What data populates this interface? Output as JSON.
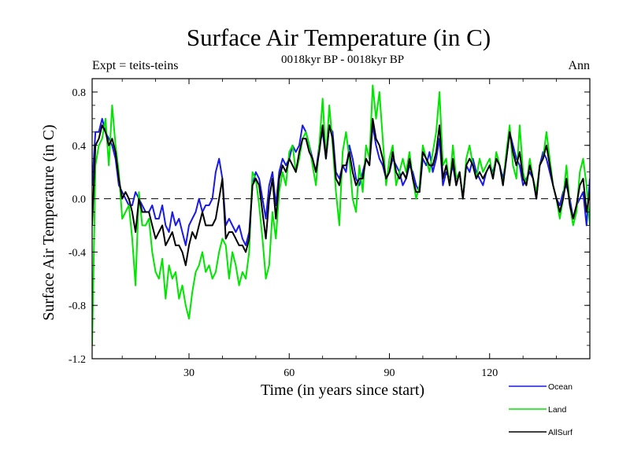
{
  "chart_data": {
    "type": "line",
    "title": "Surface Air Temperature (in C)",
    "subtitle": "0018kyr BP - 0018kyr BP",
    "left_annotation": "Expt = teits-teins",
    "right_annotation": "Ann",
    "xlabel": "Time (in years since start)",
    "ylabel": "Surface Air Temperature (in C)",
    "xlim": [
      1,
      150
    ],
    "ylim": [
      -1.2,
      0.9
    ],
    "xticks": [
      30,
      60,
      90,
      120
    ],
    "xtick_labels": [
      "30",
      "60",
      "90",
      "120"
    ],
    "yticks": [
      -1.2,
      -0.8,
      -0.4,
      0.0,
      0.4,
      0.8
    ],
    "ytick_labels": [
      "-1.2",
      "-0.8",
      "-0.4",
      "0.0",
      "0.4",
      "0.8"
    ],
    "reference_line": 0.0,
    "legend_position": "bottom-right",
    "x": [
      1,
      2,
      3,
      4,
      5,
      6,
      7,
      8,
      9,
      10,
      11,
      12,
      13,
      14,
      15,
      16,
      17,
      18,
      19,
      20,
      21,
      22,
      23,
      24,
      25,
      26,
      27,
      28,
      29,
      30,
      31,
      32,
      33,
      34,
      35,
      36,
      37,
      38,
      39,
      40,
      41,
      42,
      43,
      44,
      45,
      46,
      47,
      48,
      49,
      50,
      51,
      52,
      53,
      54,
      55,
      56,
      57,
      58,
      59,
      60,
      61,
      62,
      63,
      64,
      65,
      66,
      67,
      68,
      69,
      70,
      71,
      72,
      73,
      74,
      75,
      76,
      77,
      78,
      79,
      80,
      81,
      82,
      83,
      84,
      85,
      86,
      87,
      88,
      89,
      90,
      91,
      92,
      93,
      94,
      95,
      96,
      97,
      98,
      99,
      100,
      101,
      102,
      103,
      104,
      105,
      106,
      107,
      108,
      109,
      110,
      111,
      112,
      113,
      114,
      115,
      116,
      117,
      118,
      119,
      120,
      121,
      122,
      123,
      124,
      125,
      126,
      127,
      128,
      129,
      130,
      131,
      132,
      133,
      134,
      135,
      136,
      137,
      138,
      139,
      140,
      141,
      142,
      143,
      144,
      145,
      146,
      147,
      148,
      149,
      150
    ],
    "series": [
      {
        "name": "Ocean",
        "color": "#1a1ae6",
        "values": [
          0.1,
          0.5,
          0.5,
          0.6,
          0.5,
          0.45,
          0.4,
          0.3,
          0.1,
          0.05,
          0.0,
          -0.05,
          -0.05,
          0.05,
          0.0,
          -0.05,
          -0.1,
          -0.1,
          -0.05,
          -0.15,
          -0.15,
          -0.05,
          -0.2,
          -0.25,
          -0.1,
          -0.2,
          -0.15,
          -0.25,
          -0.35,
          -0.2,
          -0.15,
          -0.1,
          0.0,
          -0.1,
          -0.05,
          -0.05,
          0.0,
          0.2,
          0.3,
          0.15,
          -0.2,
          -0.15,
          -0.2,
          -0.25,
          -0.2,
          -0.3,
          -0.35,
          -0.25,
          0.1,
          0.2,
          0.15,
          0.0,
          -0.15,
          0.1,
          0.2,
          -0.05,
          0.2,
          0.3,
          0.25,
          0.3,
          0.4,
          0.35,
          0.4,
          0.55,
          0.5,
          0.4,
          0.3,
          0.2,
          0.4,
          0.5,
          0.3,
          0.55,
          0.5,
          0.2,
          0.15,
          0.25,
          0.2,
          0.4,
          0.3,
          0.15,
          0.1,
          0.2,
          0.3,
          0.25,
          0.55,
          0.4,
          0.3,
          0.25,
          0.15,
          0.2,
          0.3,
          0.25,
          0.2,
          0.1,
          0.15,
          0.25,
          0.2,
          0.1,
          0.05,
          0.3,
          0.25,
          0.35,
          0.2,
          0.3,
          0.45,
          0.1,
          0.2,
          0.15,
          0.25,
          0.1,
          0.2,
          0.0,
          0.25,
          0.2,
          0.3,
          0.2,
          0.15,
          0.1,
          0.2,
          0.25,
          0.2,
          0.3,
          0.25,
          0.15,
          0.3,
          0.5,
          0.4,
          0.3,
          0.25,
          0.1,
          0.15,
          0.2,
          0.15,
          0.0,
          0.25,
          0.35,
          0.3,
          0.2,
          0.1,
          0.0,
          -0.05,
          0.05,
          0.1,
          0.0,
          -0.15,
          -0.05,
          0.0,
          0.05,
          -0.2,
          0.15
        ]
      },
      {
        "name": "Land",
        "color": "#00e600",
        "values": [
          -1.1,
          0.25,
          0.4,
          0.45,
          0.6,
          0.25,
          0.7,
          0.4,
          0.2,
          -0.15,
          -0.1,
          -0.05,
          -0.3,
          -0.65,
          0.05,
          -0.2,
          -0.2,
          -0.15,
          -0.4,
          -0.55,
          -0.6,
          -0.45,
          -0.75,
          -0.5,
          -0.6,
          -0.55,
          -0.75,
          -0.65,
          -0.8,
          -0.9,
          -0.7,
          -0.55,
          -0.5,
          -0.4,
          -0.55,
          -0.5,
          -0.6,
          -0.55,
          -0.4,
          -0.3,
          -0.35,
          -0.6,
          -0.4,
          -0.5,
          -0.65,
          -0.55,
          -0.6,
          -0.4,
          0.2,
          0.15,
          -0.05,
          -0.3,
          -0.6,
          -0.5,
          -0.1,
          -0.3,
          0.05,
          0.2,
          0.1,
          0.35,
          0.4,
          0.2,
          0.3,
          0.45,
          0.5,
          0.4,
          0.25,
          0.1,
          0.4,
          0.75,
          0.3,
          0.7,
          0.4,
          0.05,
          -0.2,
          0.35,
          0.5,
          0.3,
          0.0,
          -0.1,
          0.25,
          0.05,
          0.4,
          0.3,
          0.85,
          0.6,
          0.8,
          0.45,
          0.1,
          0.3,
          0.4,
          0.1,
          0.2,
          0.3,
          0.2,
          0.35,
          0.15,
          0.0,
          0.1,
          0.4,
          0.3,
          0.2,
          0.35,
          0.5,
          0.8,
          0.25,
          0.3,
          0.1,
          0.4,
          0.15,
          0.2,
          0.0,
          0.3,
          0.4,
          0.25,
          0.15,
          0.3,
          0.2,
          0.25,
          0.3,
          0.15,
          0.35,
          0.25,
          0.1,
          0.35,
          0.55,
          0.25,
          0.15,
          0.55,
          0.2,
          0.1,
          0.3,
          0.15,
          0.05,
          0.25,
          0.3,
          0.5,
          0.3,
          0.1,
          0.0,
          -0.15,
          0.0,
          0.25,
          -0.05,
          -0.2,
          -0.1,
          0.2,
          0.3,
          0.1,
          -0.2
        ]
      },
      {
        "name": "AllSurf",
        "color": "#000000",
        "values": [
          -0.2,
          0.4,
          0.45,
          0.55,
          0.5,
          0.4,
          0.45,
          0.35,
          0.15,
          0.0,
          0.05,
          0.0,
          -0.1,
          -0.25,
          0.0,
          -0.1,
          -0.1,
          -0.1,
          -0.2,
          -0.3,
          -0.25,
          -0.2,
          -0.35,
          -0.3,
          -0.25,
          -0.35,
          -0.35,
          -0.4,
          -0.5,
          -0.35,
          -0.25,
          -0.3,
          -0.2,
          -0.1,
          -0.2,
          -0.2,
          -0.2,
          -0.15,
          0.0,
          0.15,
          -0.3,
          -0.25,
          -0.25,
          -0.3,
          -0.35,
          -0.35,
          -0.4,
          -0.3,
          0.1,
          0.15,
          0.1,
          -0.1,
          -0.3,
          0.0,
          0.15,
          -0.15,
          0.15,
          0.25,
          0.2,
          0.3,
          0.25,
          0.2,
          0.35,
          0.45,
          0.45,
          0.35,
          0.3,
          0.2,
          0.35,
          0.55,
          0.3,
          0.55,
          0.45,
          0.15,
          0.1,
          0.25,
          0.25,
          0.35,
          0.2,
          0.1,
          0.15,
          0.15,
          0.3,
          0.25,
          0.6,
          0.45,
          0.4,
          0.3,
          0.15,
          0.2,
          0.35,
          0.2,
          0.15,
          0.2,
          0.15,
          0.3,
          0.15,
          0.05,
          0.05,
          0.35,
          0.3,
          0.25,
          0.25,
          0.35,
          0.55,
          0.15,
          0.25,
          0.1,
          0.3,
          0.1,
          0.2,
          0.0,
          0.25,
          0.3,
          0.25,
          0.15,
          0.2,
          0.15,
          0.2,
          0.25,
          0.15,
          0.3,
          0.25,
          0.1,
          0.3,
          0.5,
          0.35,
          0.25,
          0.35,
          0.15,
          0.1,
          0.25,
          0.15,
          0.0,
          0.25,
          0.3,
          0.4,
          0.25,
          0.1,
          0.0,
          -0.1,
          0.0,
          0.15,
          -0.05,
          -0.15,
          -0.05,
          0.1,
          0.15,
          -0.1,
          0.05
        ]
      }
    ]
  }
}
